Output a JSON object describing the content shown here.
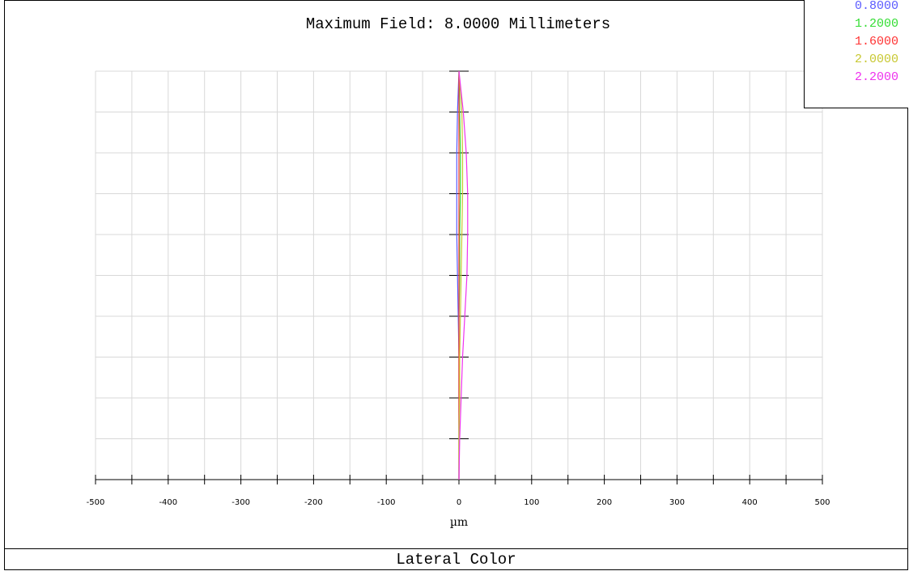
{
  "footer": {
    "title": "Lateral Color"
  },
  "chart_data": {
    "type": "line",
    "title": "Maximum Field: 8.0000 Millimeters",
    "xlabel": "µm",
    "ylabel": "",
    "xlim": [
      -500,
      500
    ],
    "ylim": [
      0,
      1
    ],
    "x_ticks": [
      -500,
      -400,
      -300,
      -200,
      -100,
      0,
      100,
      200,
      300,
      400,
      500
    ],
    "x_tick_labels": [
      "-500",
      "-400",
      "-300",
      "-200",
      "-100",
      "0",
      "100",
      "200",
      "300",
      "400",
      "500"
    ],
    "grid": true,
    "legend_position": "top-right",
    "y_field_fraction": [
      0,
      0.1,
      0.2,
      0.3,
      0.4,
      0.5,
      0.6,
      0.7,
      0.8,
      0.9,
      1.0
    ],
    "series": [
      {
        "name": "0.8000",
        "color": "#5b5bff",
        "x": [
          0,
          0,
          0,
          0,
          -1,
          -2,
          -3,
          -3,
          -3,
          -2,
          0
        ]
      },
      {
        "name": "1.2000",
        "color": "#33dd33",
        "x": [
          0,
          0,
          0,
          0,
          0,
          1,
          1,
          2,
          2,
          1,
          0
        ]
      },
      {
        "name": "1.6000",
        "color": "#ff3333",
        "x": [
          0,
          0,
          0,
          0,
          0,
          0,
          0,
          0,
          0,
          0,
          0
        ]
      },
      {
        "name": "2.0000",
        "color": "#c8c832",
        "x": [
          0,
          0,
          1,
          1,
          2,
          3,
          4,
          5,
          5,
          4,
          0
        ]
      },
      {
        "name": "2.2000",
        "color": "#ee33ee",
        "x": [
          0,
          1,
          3,
          5,
          8,
          11,
          12,
          12,
          10,
          6,
          0
        ]
      }
    ]
  }
}
